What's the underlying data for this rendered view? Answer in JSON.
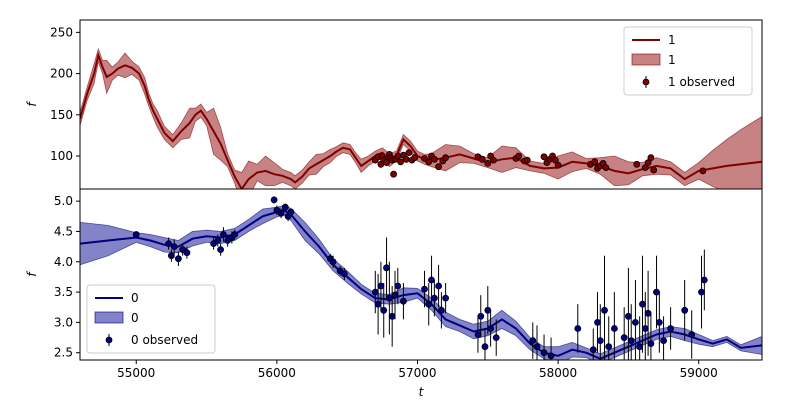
{
  "chart_data": [
    {
      "type": "line",
      "panel": "top",
      "xlabel": "",
      "ylabel": "f",
      "xlim": [
        54600,
        59450
      ],
      "ylim": [
        60,
        265
      ],
      "yticks": [
        100,
        150,
        200,
        250
      ],
      "color": "#800000",
      "band_color": "#b45a5a",
      "legend": {
        "placement": "upper right",
        "line": "1",
        "band": "1",
        "points": "1 observed"
      },
      "model": {
        "name": "1",
        "x": [
          54600,
          54650,
          54700,
          54730,
          54760,
          54790,
          54830,
          54870,
          54920,
          54970,
          55020,
          55060,
          55090,
          55120,
          55150,
          55200,
          55260,
          55320,
          55380,
          55420,
          55460,
          55500,
          55550,
          55600,
          55650,
          55700,
          55750,
          55800,
          55860,
          55920,
          55980,
          56040,
          56100,
          56130,
          56180,
          56230,
          56280,
          56330,
          56380,
          56420,
          56470,
          56520,
          56560,
          56600,
          56650,
          56700,
          56750,
          56800,
          56850,
          56900,
          56950,
          57000,
          57050,
          57100,
          57200,
          57300,
          57400,
          57500,
          57600,
          57700,
          57800,
          57900,
          58000,
          58100,
          58200,
          58300,
          58400,
          58500,
          58600,
          58700,
          58800,
          58900,
          59000,
          59100,
          59200,
          59300,
          59450
        ],
        "y": [
          145,
          175,
          200,
          222,
          208,
          196,
          200,
          206,
          210,
          207,
          200,
          185,
          168,
          155,
          145,
          128,
          118,
          130,
          140,
          150,
          155,
          145,
          130,
          115,
          95,
          75,
          60,
          72,
          80,
          82,
          78,
          76,
          72,
          68,
          75,
          85,
          90,
          95,
          100,
          105,
          110,
          108,
          98,
          88,
          94,
          100,
          104,
          95,
          100,
          120,
          112,
          100,
          96,
          95,
          98,
          102,
          97,
          92,
          96,
          98,
          88,
          85,
          86,
          93,
          91,
          88,
          82,
          79,
          84,
          88,
          85,
          72,
          82,
          85,
          88,
          90,
          93
        ]
      },
      "band_halfwidth": [
        8,
        8,
        12,
        8,
        8,
        20,
        8,
        8,
        15,
        8,
        8,
        10,
        8,
        8,
        10,
        8,
        8,
        10,
        18,
        8,
        8,
        8,
        28,
        20,
        8,
        8,
        20,
        22,
        10,
        18,
        14,
        8,
        8,
        8,
        8,
        8,
        12,
        8,
        8,
        6,
        6,
        6,
        6,
        8,
        6,
        6,
        6,
        8,
        6,
        6,
        6,
        6,
        6,
        8,
        16,
        10,
        6,
        6,
        16,
        12,
        6,
        6,
        14,
        12,
        6,
        10,
        18,
        14,
        8,
        10,
        8,
        8,
        10,
        22,
        32,
        42,
        55
      ],
      "observed": {
        "name": "1 observed",
        "x": [
          56700,
          56720,
          56740,
          56750,
          56760,
          56780,
          56800,
          56810,
          56820,
          56830,
          56840,
          56860,
          56880,
          56900,
          56920,
          56940,
          56960,
          56980,
          57050,
          57080,
          57100,
          57120,
          57150,
          57180,
          57200,
          57430,
          57460,
          57500,
          57520,
          57540,
          57700,
          57720,
          57760,
          57780,
          57900,
          57920,
          57940,
          57960,
          57980,
          58000,
          58230,
          58260,
          58280,
          58300,
          58320,
          58340,
          58560,
          58620,
          58640,
          58660,
          58680,
          59030
        ],
        "y": [
          95,
          99,
          90,
          100,
          95,
          92,
          102,
          98,
          95,
          78,
          96,
          100,
          93,
          101,
          96,
          104,
          95,
          98,
          97,
          93,
          100,
          96,
          87,
          94,
          98,
          99,
          96,
          91,
          100,
          95,
          97,
          100,
          94,
          95,
          99,
          92,
          96,
          100,
          95,
          89,
          90,
          93,
          85,
          88,
          91,
          86,
          90,
          86,
          92,
          98,
          83,
          82
        ]
      }
    },
    {
      "type": "line",
      "panel": "bottom",
      "xlabel": "t",
      "ylabel": "f",
      "xlim": [
        54600,
        59450
      ],
      "ylim": [
        2.38,
        5.2
      ],
      "yticks": [
        2.5,
        3.0,
        3.5,
        4.0,
        4.5,
        5.0
      ],
      "xticks": [
        55000,
        56000,
        57000,
        58000,
        59000
      ],
      "color": "#000080",
      "band_color": "#5a5ab4",
      "legend": {
        "placement": "lower left",
        "line": "0",
        "band": "0",
        "points": "0 observed"
      },
      "model": {
        "name": "0",
        "x": [
          54600,
          54800,
          55000,
          55100,
          55200,
          55300,
          55400,
          55500,
          55600,
          55700,
          55800,
          55900,
          56000,
          56050,
          56100,
          56200,
          56300,
          56400,
          56500,
          56600,
          56700,
          56800,
          56900,
          57000,
          57100,
          57200,
          57300,
          57400,
          57500,
          57600,
          57700,
          57800,
          57900,
          58000,
          58100,
          58200,
          58300,
          58400,
          58500,
          58600,
          58700,
          58800,
          58900,
          59000,
          59100,
          59200,
          59300,
          59450
        ],
        "y": [
          4.3,
          4.35,
          4.4,
          4.35,
          4.28,
          4.25,
          4.38,
          4.42,
          4.4,
          4.45,
          4.6,
          4.75,
          4.82,
          4.85,
          4.78,
          4.5,
          4.25,
          3.95,
          3.75,
          3.55,
          3.4,
          3.38,
          3.45,
          3.48,
          3.3,
          3.05,
          2.95,
          2.85,
          2.9,
          3.05,
          2.9,
          2.65,
          2.5,
          2.45,
          2.55,
          2.5,
          2.4,
          2.5,
          2.6,
          2.7,
          2.8,
          2.85,
          2.8,
          2.72,
          2.65,
          2.72,
          2.58,
          2.62
        ]
      },
      "band_halfwidth": [
        0.35,
        0.25,
        0.08,
        0.1,
        0.12,
        0.1,
        0.12,
        0.1,
        0.1,
        0.1,
        0.1,
        0.12,
        0.08,
        0.08,
        0.1,
        0.15,
        0.12,
        0.1,
        0.1,
        0.08,
        0.08,
        0.08,
        0.12,
        0.08,
        0.1,
        0.12,
        0.1,
        0.12,
        0.12,
        0.15,
        0.12,
        0.1,
        0.1,
        0.15,
        0.12,
        0.08,
        0.08,
        0.08,
        0.08,
        0.08,
        0.08,
        0.08,
        0.1,
        0.08,
        0.05,
        0.05,
        0.05,
        0.15
      ],
      "observed": {
        "name": "0 observed",
        "x": [
          55000,
          55230,
          55250,
          55270,
          55300,
          55330,
          55360,
          55550,
          55580,
          55600,
          55620,
          55650,
          55680,
          55700,
          55980,
          56000,
          56030,
          56060,
          56080,
          56100,
          56380,
          56400,
          56450,
          56480,
          56700,
          56720,
          56740,
          56760,
          56780,
          56800,
          56820,
          56840,
          56860,
          56900,
          57050,
          57080,
          57100,
          57120,
          57150,
          57170,
          57200,
          57430,
          57450,
          57480,
          57500,
          57520,
          57560,
          57820,
          57850,
          57900,
          57950,
          58140,
          58250,
          58280,
          58300,
          58330,
          58360,
          58400,
          58470,
          58500,
          58520,
          58550,
          58580,
          58600,
          58620,
          58640,
          58660,
          58700,
          58720,
          58750,
          58800,
          58900,
          58950,
          59020,
          59040
        ],
        "y": [
          4.45,
          4.3,
          4.1,
          4.25,
          4.05,
          4.2,
          4.15,
          4.3,
          4.35,
          4.2,
          4.45,
          4.35,
          4.4,
          4.45,
          5.02,
          4.85,
          4.8,
          4.9,
          4.75,
          4.82,
          4.05,
          4.0,
          3.85,
          3.8,
          3.5,
          3.3,
          3.6,
          3.2,
          3.9,
          3.4,
          3.1,
          3.45,
          3.6,
          3.35,
          3.55,
          3.3,
          3.7,
          3.4,
          3.6,
          3.2,
          3.4,
          2.8,
          3.1,
          2.6,
          3.2,
          2.9,
          2.75,
          2.7,
          2.6,
          2.5,
          2.45,
          2.9,
          2.55,
          3.0,
          2.7,
          3.2,
          2.6,
          2.9,
          2.75,
          3.1,
          2.7,
          3.0,
          2.6,
          3.3,
          2.9,
          3.15,
          2.65,
          3.5,
          3.0,
          2.7,
          2.9,
          3.2,
          2.8,
          3.5,
          3.7
        ],
        "yerr": [
          0.05,
          0.1,
          0.1,
          0.12,
          0.12,
          0.1,
          0.1,
          0.1,
          0.1,
          0.1,
          0.12,
          0.1,
          0.1,
          0.08,
          0.06,
          0.08,
          0.08,
          0.06,
          0.08,
          0.06,
          0.08,
          0.1,
          0.08,
          0.1,
          0.35,
          0.5,
          0.4,
          0.45,
          0.5,
          0.6,
          0.5,
          0.4,
          0.3,
          0.3,
          0.3,
          0.35,
          0.4,
          0.3,
          0.35,
          0.3,
          0.25,
          0.3,
          0.35,
          0.3,
          0.4,
          0.3,
          0.3,
          0.3,
          0.35,
          0.3,
          0.3,
          0.4,
          0.35,
          0.5,
          0.6,
          0.9,
          0.5,
          0.6,
          0.5,
          0.8,
          0.6,
          0.7,
          0.5,
          0.8,
          0.6,
          0.7,
          0.5,
          0.6,
          0.5,
          0.4,
          0.35,
          0.5,
          0.4,
          0.6,
          0.5
        ]
      }
    }
  ]
}
